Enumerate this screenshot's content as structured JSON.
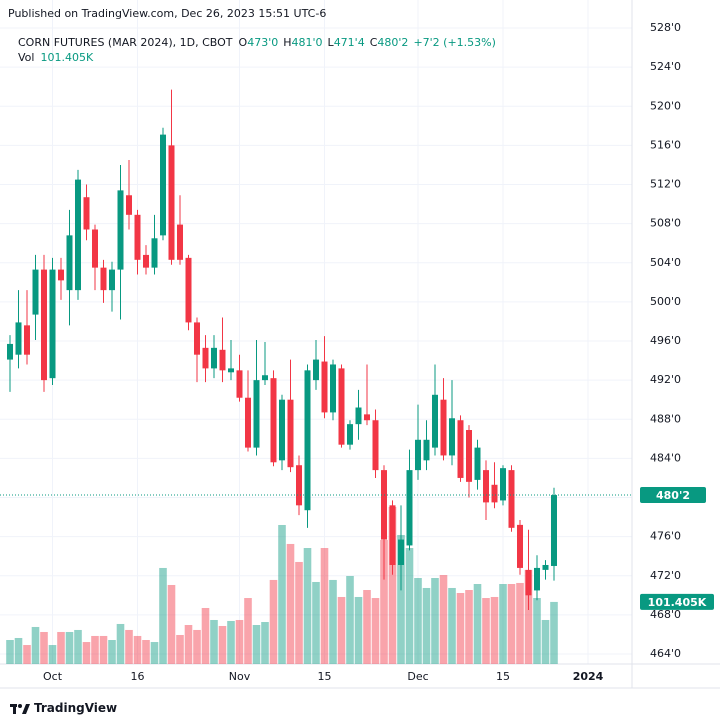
{
  "published": "Published on TradingView.com, Dec 26, 2023 15:51 UTC-6",
  "brand": "TradingView",
  "chart_data": {
    "type": "candlestick",
    "title": "CORN FUTURES (MAR 2024), 1D, CBOT",
    "up_color": "#089981",
    "down_color": "#f23645",
    "open": [
      494.1,
      494.6,
      497.6,
      498.7,
      503.3,
      492.2,
      503.3,
      501.2,
      501.2,
      510.7,
      507.4,
      503.5,
      501.2,
      503.3,
      510.9,
      508.9,
      504.8,
      503.5,
      506.8,
      516.0,
      507.9,
      504.5,
      497.9,
      495.3,
      493.2,
      495.1,
      492.8,
      493.0,
      490.2,
      485.1,
      492.0,
      492.2,
      483.8,
      490.0,
      483.3,
      478.7,
      492.0,
      493.9,
      488.7,
      493.2,
      485.4,
      487.5,
      488.5,
      487.9,
      482.8,
      479.2,
      473.1,
      475.1,
      482.8,
      483.8,
      485.1,
      490.0,
      484.3,
      487.9,
      486.9,
      481.8,
      482.8,
      481.3,
      479.7,
      482.8,
      477.2,
      472.6,
      470.5,
      472.6,
      473
    ],
    "high": [
      496.6,
      501.2,
      501.2,
      504.8,
      504.8,
      504.5,
      504.5,
      509.4,
      513.5,
      512.0,
      507.9,
      504.3,
      504.1,
      514.0,
      514.5,
      509.4,
      505.8,
      508.9,
      517.8,
      521.7,
      510.9,
      504.8,
      498.4,
      496.6,
      496.6,
      498.4,
      496.1,
      494.6,
      493.0,
      496.1,
      495.9,
      493.0,
      490.5,
      494.1,
      484.3,
      493.6,
      496.1,
      496.5,
      494.1,
      493.6,
      487.9,
      491.0,
      493.6,
      489.0,
      483.3,
      479.7,
      479.2,
      484.9,
      489.5,
      487.9,
      493.6,
      492.2,
      492.0,
      488.4,
      487.4,
      485.9,
      483.8,
      483.6,
      483.3,
      483.3,
      477.7,
      476.7,
      474.1,
      473.6,
      481
    ],
    "low": [
      490.8,
      493.2,
      493.6,
      496.1,
      490.8,
      491.5,
      500.2,
      497.6,
      500.2,
      506.3,
      501.2,
      499.9,
      499.0,
      498.2,
      507.4,
      502.8,
      502.8,
      502.8,
      506.3,
      503.8,
      503.8,
      497.1,
      491.8,
      491.8,
      492.2,
      491.8,
      492.0,
      489.8,
      484.7,
      484.3,
      491.5,
      483.2,
      482.8,
      482.6,
      478.2,
      476.9,
      491.0,
      488.1,
      487.9,
      485.1,
      484.9,
      485.9,
      487.4,
      482.0,
      471.6,
      472.1,
      470.5,
      474.6,
      481.8,
      482.8,
      484.3,
      483.8,
      483.3,
      481.6,
      480.0,
      480.8,
      477.7,
      478.9,
      479.2,
      476.5,
      472.1,
      468.5,
      469.5,
      471.6,
      471.5
    ],
    "close": [
      495.7,
      497.9,
      494.6,
      503.3,
      492.0,
      503.3,
      502.2,
      506.8,
      512.5,
      507.4,
      503.5,
      501.2,
      503.3,
      511.4,
      508.9,
      504.3,
      503.5,
      506.5,
      517.1,
      504.3,
      504.3,
      497.9,
      494.6,
      493.2,
      495.3,
      493.0,
      493.2,
      490.2,
      485.1,
      492.0,
      492.5,
      483.6,
      490.0,
      483.1,
      479.2,
      493.0,
      494.1,
      488.7,
      493.6,
      485.4,
      487.5,
      489.2,
      487.9,
      482.8,
      475.7,
      473.1,
      475.7,
      482.8,
      485.9,
      485.9,
      490.5,
      484.3,
      488.1,
      482.0,
      481.6,
      485.1,
      479.5,
      479.5,
      483.0,
      476.9,
      472.8,
      470.0,
      472.8,
      473.1,
      480.25
    ],
    "volume": [
      39200,
      42500,
      31000,
      60500,
      52300,
      31000,
      52300,
      52300,
      55600,
      35900,
      45800,
      45800,
      39200,
      65400,
      55600,
      45800,
      39200,
      35900,
      156900,
      129100,
      47400,
      63700,
      55600,
      91500,
      71900,
      62100,
      70300,
      71900,
      107800,
      63700,
      68600,
      137300,
      227100,
      196100,
      166700,
      189500,
      134000,
      189500,
      137300,
      109500,
      143800,
      109500,
      120900,
      107800,
      202600,
      256500,
      210800,
      189500,
      140500,
      124200,
      140500,
      145400,
      124200,
      116000,
      120900,
      130700,
      107800,
      109500,
      130700,
      130700,
      132400,
      153600,
      107800,
      71900,
      101405
    ],
    "ylim": [
      464,
      528
    ],
    "yticks": [
      {
        "value": 464,
        "label": "464'0"
      },
      {
        "value": 468,
        "label": "468'0"
      },
      {
        "value": 472,
        "label": "472'0"
      },
      {
        "value": 476,
        "label": "476'0"
      },
      {
        "value": 480,
        "label": "480'0"
      },
      {
        "value": 484,
        "label": "484'0"
      },
      {
        "value": 488,
        "label": "488'0"
      },
      {
        "value": 492,
        "label": "492'0"
      },
      {
        "value": 496,
        "label": "496'0"
      },
      {
        "value": 500,
        "label": "500'0"
      },
      {
        "value": 504,
        "label": "504'0"
      },
      {
        "value": 508,
        "label": "508'0"
      },
      {
        "value": 512,
        "label": "512'0"
      },
      {
        "value": 516,
        "label": "516'0"
      },
      {
        "value": 520,
        "label": "520'0"
      },
      {
        "value": 524,
        "label": "524'0"
      },
      {
        "value": 528,
        "label": "528'0"
      }
    ],
    "xticks": [
      {
        "value": 5,
        "label": "Oct"
      },
      {
        "value": 15,
        "label": "16"
      },
      {
        "value": 27,
        "label": "Nov"
      },
      {
        "value": 37,
        "label": "15"
      },
      {
        "value": 48,
        "label": "Dec"
      },
      {
        "value": 58,
        "label": "15"
      },
      {
        "value": 68,
        "label": "2024"
      }
    ],
    "legend": [
      {
        "key": "O",
        "value": 473,
        "label": "473'0"
      },
      {
        "key": "H",
        "value": 481,
        "label": "481'0"
      },
      {
        "key": "L",
        "value": 471.5,
        "label": "471'4"
      },
      {
        "key": "C",
        "value": 480.25,
        "label": "480'2"
      }
    ],
    "change": "+7'2 (+1.53%)",
    "volume_legend": {
      "key": "Vol",
      "value": 101405,
      "label": "101.405K"
    },
    "grid": true
  }
}
